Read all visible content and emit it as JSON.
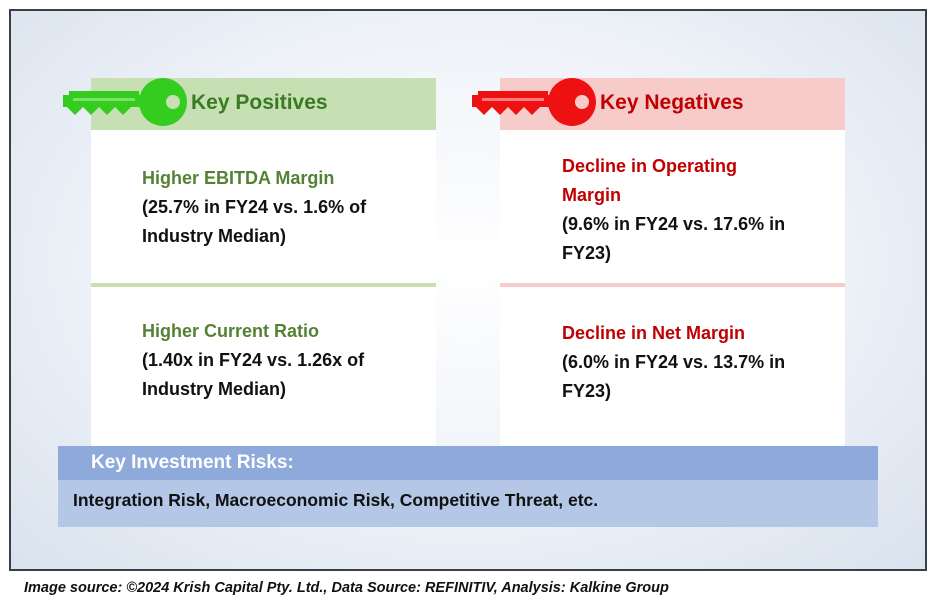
{
  "positives": {
    "header": "Key Positives",
    "accent_color": "#3a7a22",
    "items": [
      {
        "title": "Higher EBITDA Margin",
        "lines": [
          "(25.7% in FY24 vs. 1.6% of",
          "Industry Median)"
        ]
      },
      {
        "title": "Higher Current Ratio",
        "lines": [
          "(1.40x in FY24 vs. 1.26x of",
          "Industry Median)"
        ]
      }
    ]
  },
  "negatives": {
    "header": "Key Negatives",
    "accent_color": "#c00000",
    "items": [
      {
        "title_lines": [
          "Decline in Operating",
          "Margin"
        ],
        "lines": [
          "(9.6% in FY24 vs. 17.6% in",
          "FY23)"
        ]
      },
      {
        "title_lines": [
          "Decline in Net Margin"
        ],
        "lines": [
          "(6.0% in FY24 vs. 13.7% in",
          "FY23)"
        ]
      }
    ]
  },
  "risks": {
    "title": "Key Investment Risks:",
    "text": "Integration Risk, Macroeconomic Risk, Competitive Threat, etc."
  },
  "footer": "Image source: ©2024 Krish Capital Pty. Ltd., Data Source: REFINITIV, Analysis: Kalkine Group",
  "icons": {
    "positives": "key-icon",
    "negatives": "key-icon"
  }
}
